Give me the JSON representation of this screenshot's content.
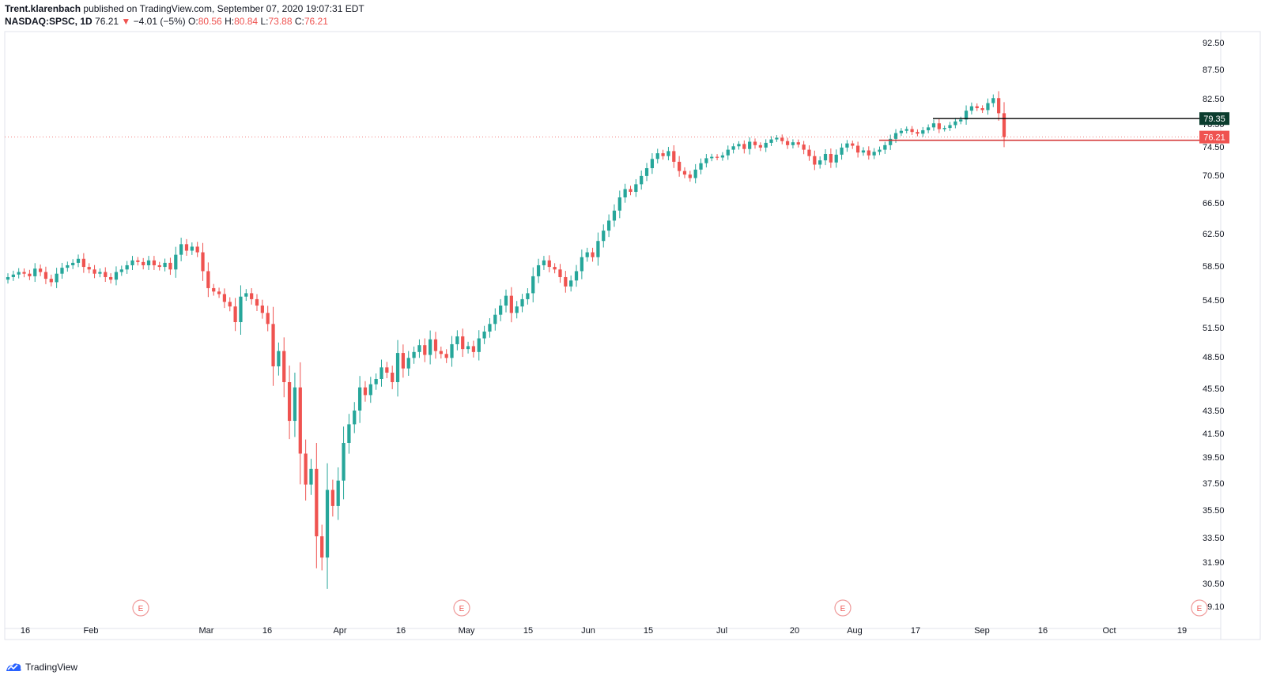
{
  "header": {
    "author": "Trent.klarenbach",
    "published_text": "published on TradingView.com, September 07, 2020 19:07:31 EDT",
    "symbol": "NASDAQ:SPSC, 1D",
    "last": "76.21",
    "change_arrow": "▼",
    "change": "−4.01 (−5%)",
    "o_label": "O:",
    "o_value": "80.56",
    "h_label": "H:",
    "h_value": "80.84",
    "l_label": "L:",
    "l_value": "73.88",
    "c_label": "C:",
    "c_value": "76.21"
  },
  "footer": {
    "brand": "TradingView",
    "logo_icon": "tradingview-logo-icon"
  },
  "colors": {
    "up": "#26a69a",
    "down": "#ef5350",
    "grid_border": "#e0e3eb",
    "resistance": "#000000",
    "support": "#d32f2f"
  },
  "chart_data": {
    "type": "candlestick",
    "symbol": "NASDAQ:SPSC",
    "interval": "1D",
    "y_ticks": [
      "92.50",
      "87.50",
      "82.50",
      "78.50",
      "74.50",
      "70.50",
      "66.50",
      "62.50",
      "58.50",
      "54.50",
      "51.50",
      "48.50",
      "45.50",
      "43.50",
      "41.50",
      "39.50",
      "37.50",
      "35.50",
      "33.50",
      "31.90",
      "30.50",
      "29.10"
    ],
    "x_labels": [
      "16",
      "Feb",
      "Mar",
      "16",
      "Apr",
      "16",
      "May",
      "15",
      "Jun",
      "15",
      "Jul",
      "20",
      "Aug",
      "17",
      "Sep",
      "16",
      "Oct",
      "19"
    ],
    "earnings_marker": "E",
    "price_labels": {
      "resistance": "79.35",
      "last": "76.21"
    },
    "closes": [
      57.2,
      57.5,
      57.8,
      57.6,
      57.3,
      58.2,
      57.8,
      57.0,
      56.6,
      57.6,
      58.3,
      58.6,
      58.9,
      59.4,
      58.4,
      58.1,
      57.6,
      57.8,
      57.2,
      56.9,
      57.8,
      58.1,
      58.6,
      59.2,
      59.0,
      58.6,
      59.2,
      58.6,
      58.4,
      58.9,
      58.1,
      59.9,
      61.2,
      60.4,
      60.9,
      60.2,
      57.9,
      55.9,
      55.5,
      55.2,
      54.3,
      53.8,
      52.1,
      54.9,
      55.3,
      54.6,
      53.9,
      53.1,
      51.9,
      47.6,
      49.1,
      46.1,
      42.6,
      45.6,
      39.8,
      37.4,
      38.6,
      33.6,
      32.2,
      37.0,
      35.8,
      37.7,
      40.7,
      42.3,
      43.5,
      45.6,
      44.9,
      45.9,
      46.4,
      47.5,
      47.0,
      46.1,
      48.9,
      47.4,
      48.4,
      49.0,
      49.7,
      48.7,
      50.3,
      49.1,
      48.8,
      48.4,
      49.8,
      50.6,
      49.3,
      49.6,
      49.0,
      50.4,
      51.1,
      51.9,
      52.9,
      53.9,
      55.0,
      53.1,
      53.8,
      54.6,
      55.3,
      57.3,
      58.6,
      59.2,
      58.4,
      58.1,
      57.2,
      56.1,
      56.8,
      57.9,
      59.6,
      60.2,
      59.6,
      61.6,
      62.9,
      64.2,
      65.5,
      67.3,
      68.5,
      68.1,
      69.2,
      70.4,
      71.5,
      72.8,
      73.6,
      73.2,
      73.9,
      72.4,
      71.1,
      70.6,
      70.1,
      71.3,
      72.2,
      72.9,
      73.1,
      73.0,
      73.3,
      74.1,
      74.6,
      75.0,
      74.2,
      75.4,
      74.8,
      74.4,
      75.2,
      75.8,
      76.1,
      75.5,
      74.8,
      75.3,
      74.9,
      74.1,
      73.2,
      72.0,
      72.6,
      73.5,
      72.3,
      73.4,
      74.4,
      75.1,
      74.7,
      73.7,
      74.0,
      73.3,
      73.8,
      74.1,
      74.8,
      75.9,
      76.9,
      77.3,
      77.6,
      77.1,
      76.8,
      77.4,
      77.9,
      78.6,
      77.6,
      77.8,
      78.3,
      78.9,
      79.2,
      80.6,
      81.3,
      81.0,
      80.7,
      81.8,
      82.6,
      80.2,
      76.21
    ],
    "earnings_dates": [
      "Feb",
      "May",
      "Jul"
    ]
  }
}
